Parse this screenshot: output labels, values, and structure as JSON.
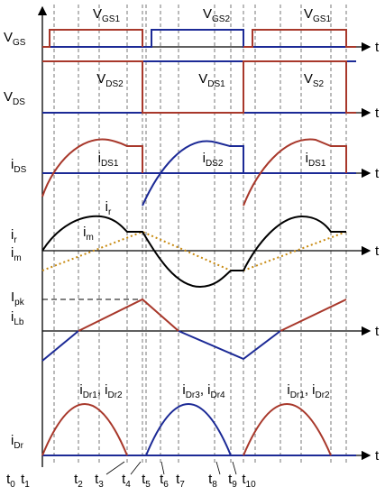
{
  "signals": [
    {
      "name": [
        [
          {
            "text": "V"
          },
          {
            "sub": "GS"
          }
        ]
      ],
      "axis": "t",
      "annotations": [
        [
          {
            "text": "V"
          },
          {
            "sub": "GS1"
          }
        ],
        [
          {
            "text": "V"
          },
          {
            "sub": "GS2"
          }
        ],
        [
          {
            "text": "V"
          },
          {
            "sub": "GS1"
          }
        ]
      ]
    },
    {
      "name": [
        [
          {
            "text": "V"
          },
          {
            "sub": "DS"
          }
        ]
      ],
      "axis": "t",
      "annotations": [
        [
          {
            "text": "V"
          },
          {
            "sub": "DS2"
          }
        ],
        [
          {
            "text": "V"
          },
          {
            "sub": "DS1"
          }
        ],
        [
          {
            "text": "V"
          },
          {
            "sub": "S2"
          }
        ]
      ]
    },
    {
      "name": [
        [
          {
            "text": "i"
          },
          {
            "sub": "DS"
          }
        ]
      ],
      "axis": "t",
      "annotations": [
        [
          {
            "text": "i"
          },
          {
            "sub": "DS1"
          }
        ],
        [
          {
            "text": "i"
          },
          {
            "sub": "DS2"
          }
        ],
        [
          {
            "text": "i"
          },
          {
            "sub": "DS1"
          }
        ]
      ]
    },
    {
      "name": [
        [
          {
            "text": "i"
          },
          {
            "sub": "r"
          }
        ],
        [
          {
            "text": "i"
          },
          {
            "sub": "m"
          }
        ]
      ],
      "axis": "t",
      "annotations": [
        [
          {
            "text": "i"
          },
          {
            "sub": "r"
          }
        ],
        [
          {
            "text": "i"
          },
          {
            "sub": "m"
          }
        ]
      ]
    },
    {
      "name": [
        [
          {
            "text": "I"
          },
          {
            "sub": "pk"
          }
        ],
        [
          {
            "text": "i"
          },
          {
            "sub": "Lb"
          }
        ]
      ],
      "axis": "t",
      "annotations": []
    },
    {
      "name": [
        [
          {
            "text": "i"
          },
          {
            "sub": "Dr"
          }
        ]
      ],
      "axis": "t",
      "annotations": [
        [
          {
            "text": "i"
          },
          {
            "sub": "Dr1"
          },
          {
            "text": ", i"
          },
          {
            "sub": "Dr2"
          }
        ],
        [
          {
            "text": "i"
          },
          {
            "sub": "Dr3"
          },
          {
            "text": ", i"
          },
          {
            "sub": "Dr4"
          }
        ],
        [
          {
            "text": "i"
          },
          {
            "sub": "Dr1"
          },
          {
            "text": ", i"
          },
          {
            "sub": "Dr2"
          }
        ]
      ]
    }
  ],
  "time_labels": [
    [
      {
        "text": "t"
      },
      {
        "sub": "0"
      }
    ],
    [
      {
        "text": "t"
      },
      {
        "sub": "1"
      }
    ],
    [
      {
        "text": "t"
      },
      {
        "sub": "2"
      }
    ],
    [
      {
        "text": "t"
      },
      {
        "sub": "3"
      }
    ],
    [
      {
        "text": "t"
      },
      {
        "sub": "4"
      }
    ],
    [
      {
        "text": "t"
      },
      {
        "sub": "5"
      }
    ],
    [
      {
        "text": "t"
      },
      {
        "sub": "6"
      }
    ],
    [
      {
        "text": "t"
      },
      {
        "sub": "7"
      }
    ],
    [
      {
        "text": "t"
      },
      {
        "sub": "8"
      }
    ],
    [
      {
        "text": "t"
      },
      {
        "sub": "9"
      }
    ],
    [
      {
        "text": "t"
      },
      {
        "sub": "10"
      }
    ]
  ]
}
